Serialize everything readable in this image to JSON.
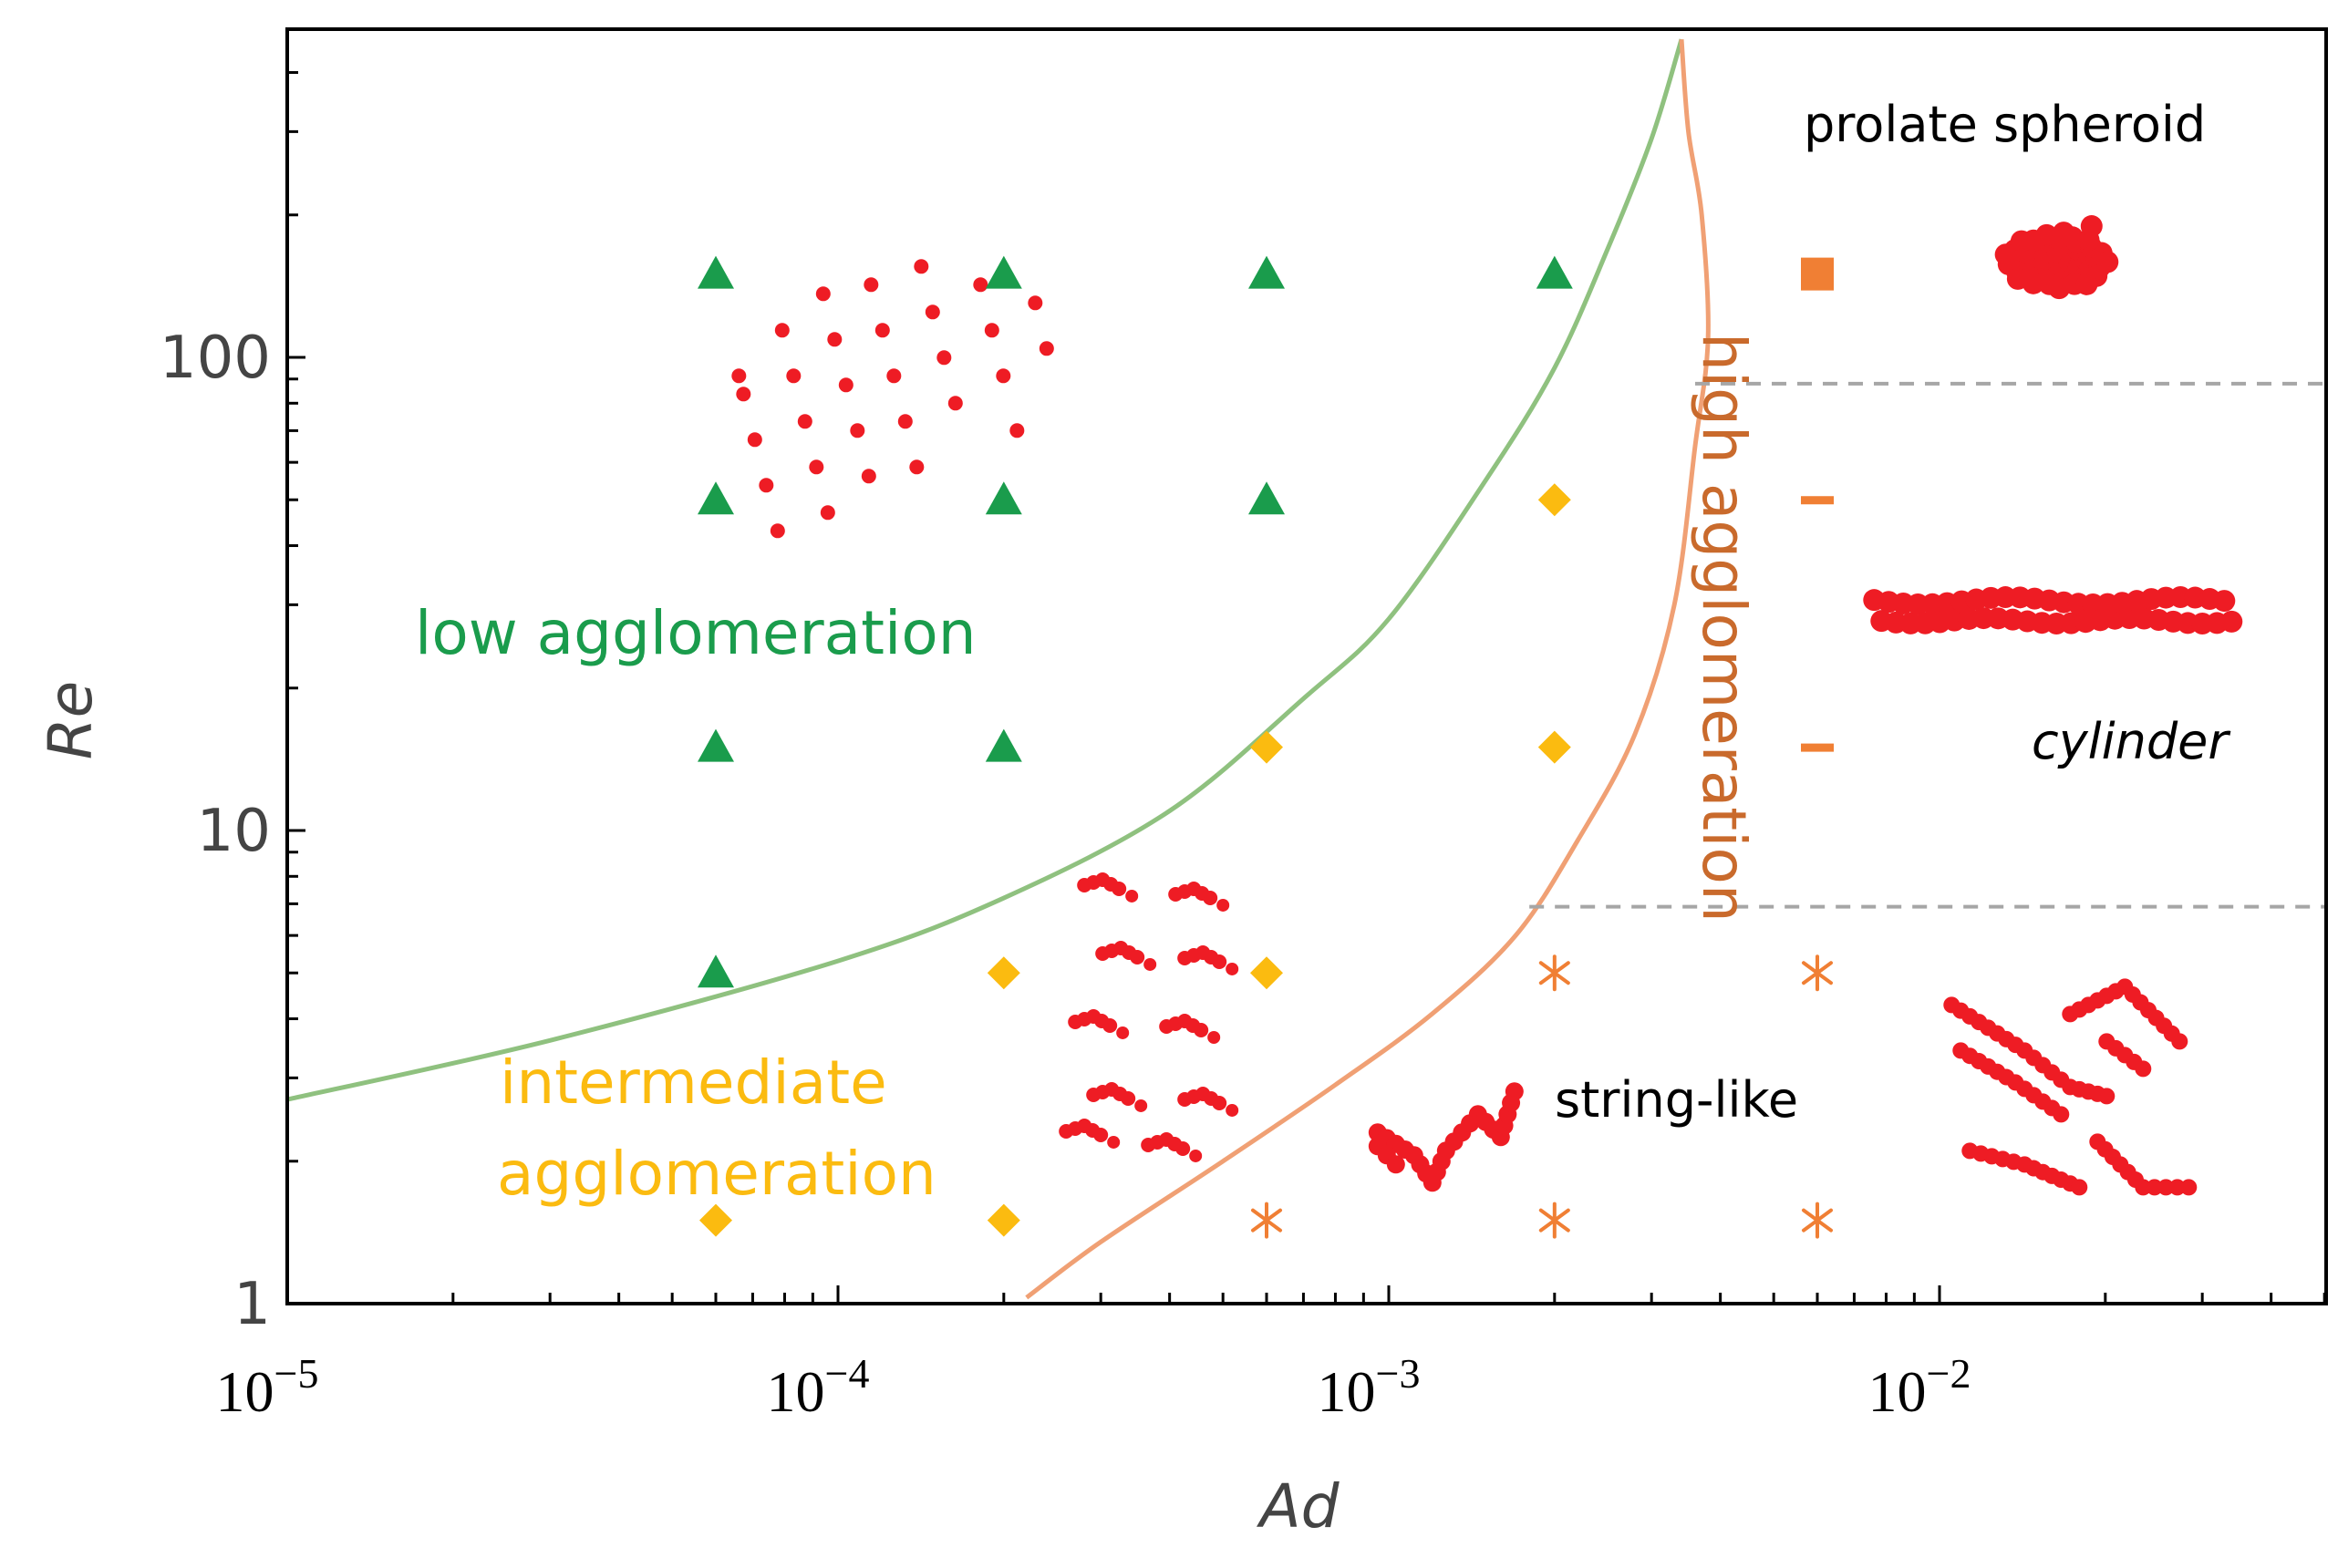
{
  "chart_data": {
    "type": "scatter",
    "xlabel": "Ad",
    "ylabel": "Re",
    "xscale": "log",
    "yscale": "log",
    "xlim": [
      1e-05,
      0.05
    ],
    "ylim": [
      1,
      400
    ],
    "x_ticks": [
      {
        "base": "10",
        "exp": "−5",
        "value": 1e-05
      },
      {
        "base": "10",
        "exp": "−4",
        "value": 0.0001
      },
      {
        "base": "10",
        "exp": "−3",
        "value": 0.001
      },
      {
        "base": "10",
        "exp": "−2",
        "value": 0.01
      }
    ],
    "y_ticks": [
      {
        "label": "1",
        "value": 1
      },
      {
        "label": "10",
        "value": 10
      },
      {
        "label": "100",
        "value": 100
      }
    ],
    "colors": {
      "low": "#1a9c4c",
      "intermediate": "#fbbb10",
      "high": "#f07f34",
      "low_curve": "#8fc17f",
      "high_curve": "#f0a074",
      "aggregate": "#ee1c24",
      "dashed": "#a6a6a6",
      "region_high_text": "#c96a2c"
    },
    "series": [
      {
        "name": "low agglomeration",
        "marker": "triangle",
        "color_key": "low",
        "points": [
          [
            6e-05,
            150
          ],
          [
            0.0002,
            150
          ],
          [
            0.0006,
            150
          ],
          [
            0.002,
            150
          ],
          [
            6e-05,
            50
          ],
          [
            0.0002,
            50
          ],
          [
            0.0006,
            50
          ],
          [
            6e-05,
            15
          ],
          [
            0.0002,
            15
          ],
          [
            6e-05,
            5
          ]
        ]
      },
      {
        "name": "intermediate agglomeration",
        "marker": "diamond",
        "color_key": "intermediate",
        "points": [
          [
            0.002,
            50
          ],
          [
            0.0006,
            15
          ],
          [
            0.002,
            15
          ],
          [
            0.0002,
            5
          ],
          [
            0.0006,
            5
          ],
          [
            6e-05,
            1.5
          ],
          [
            0.0002,
            1.5
          ]
        ]
      },
      {
        "name": "high agglomeration - prolate spheroid",
        "marker": "square",
        "color_key": "high",
        "points": [
          [
            0.006,
            150
          ]
        ]
      },
      {
        "name": "high agglomeration - cylinder",
        "marker": "dash",
        "color_key": "high",
        "points": [
          [
            0.006,
            50
          ],
          [
            0.006,
            15
          ]
        ]
      },
      {
        "name": "high agglomeration - string-like",
        "marker": "asterisk",
        "color_key": "high",
        "points": [
          [
            0.002,
            5
          ],
          [
            0.006,
            5
          ],
          [
            0.0006,
            1.5
          ],
          [
            0.002,
            1.5
          ],
          [
            0.006,
            1.5
          ]
        ]
      }
    ],
    "boundaries": [
      {
        "name": "low/intermediate boundary",
        "color_key": "low_curve",
        "points": [
          [
            1e-05,
            2.7
          ],
          [
            3e-05,
            3.6
          ],
          [
            0.0001,
            5.3
          ],
          [
            0.0002,
            7.2
          ],
          [
            0.0004,
            11
          ],
          [
            0.0007,
            19
          ],
          [
            0.001,
            28
          ],
          [
            0.0015,
            55
          ],
          [
            0.002,
            95
          ],
          [
            0.0025,
            170
          ],
          [
            0.003,
            290
          ],
          [
            0.0034,
            470
          ]
        ]
      },
      {
        "name": "intermediate/high boundary",
        "color_key": "high_curve",
        "points": [
          [
            0.00022,
            1.03
          ],
          [
            0.0003,
            1.35
          ],
          [
            0.0005,
            2.0
          ],
          [
            0.0008,
            2.9
          ],
          [
            0.0012,
            4.1
          ],
          [
            0.0017,
            6.0
          ],
          [
            0.0022,
            9.5
          ],
          [
            0.0028,
            16
          ],
          [
            0.0033,
            30
          ],
          [
            0.0036,
            65
          ],
          [
            0.0038,
            110
          ],
          [
            0.0037,
            200
          ],
          [
            0.0035,
            300
          ],
          [
            0.0034,
            470
          ]
        ]
      }
    ],
    "dividers": [
      {
        "re": 88,
        "x_from": 0.0036,
        "x_to": 0.05
      },
      {
        "re": 6.9,
        "x_from": 0.0018,
        "x_to": 0.05
      }
    ],
    "region_labels": {
      "low": "low agglomeration",
      "intermediate_line1": "intermediate",
      "intermediate_line2": "agglomeration",
      "high": "high agglomeration"
    },
    "shape_labels": {
      "prolate": "prolate spheroid",
      "cylinder": "cylinder",
      "string": "string-like"
    },
    "aggregate_illustrations": [
      {
        "name": "dispersed particles",
        "x": 0.00013,
        "re": 80
      },
      {
        "name": "small clusters",
        "x": 0.00038,
        "re": 4.5
      },
      {
        "name": "prolate spheroid aggregate",
        "x": 0.0175,
        "re": 160
      },
      {
        "name": "cylinder aggregate",
        "x": 0.016,
        "re": 29
      },
      {
        "name": "string-like aggregate small",
        "x": 0.0012,
        "re": 2.2
      },
      {
        "name": "string-like aggregate large",
        "x": 0.016,
        "re": 3
      }
    ]
  }
}
